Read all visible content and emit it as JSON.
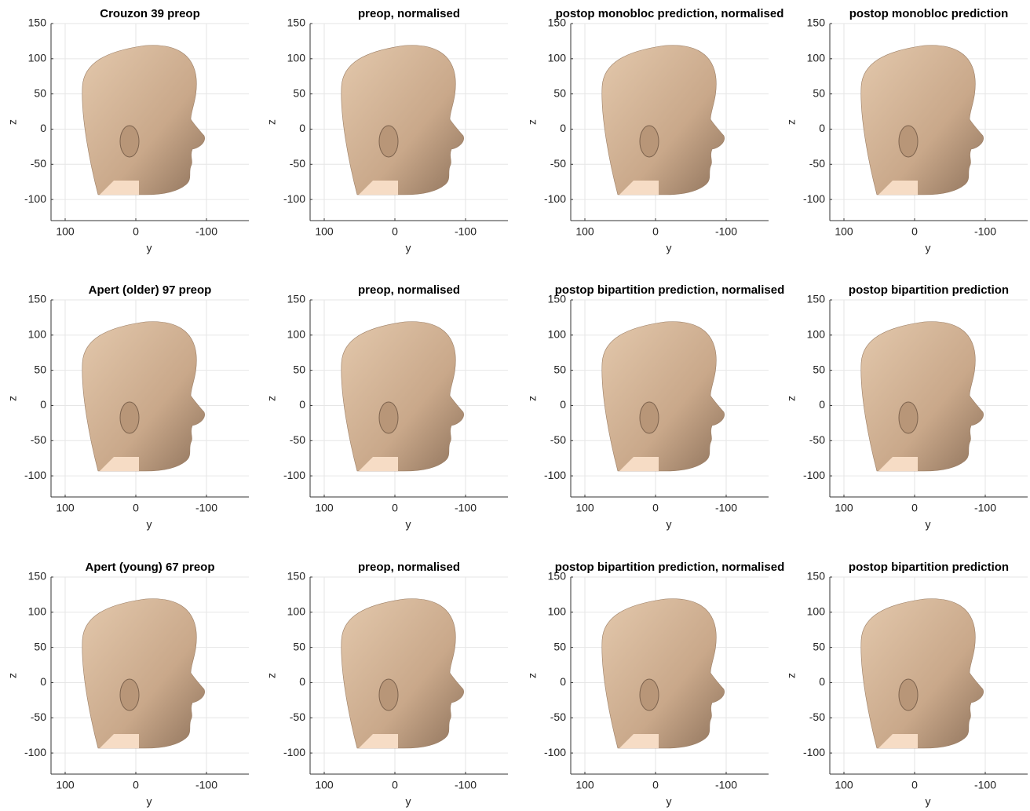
{
  "chart_data": [
    {
      "type": "render",
      "title": "Crouzon 39 preop",
      "xlabel": "y",
      "ylabel": "z",
      "xlim": [
        120,
        -160
      ],
      "ylim": [
        -130,
        150
      ],
      "xticks": [
        100,
        0,
        -100
      ],
      "yticks": [
        -100,
        -50,
        0,
        50,
        100,
        150
      ],
      "grid": true
    },
    {
      "type": "render",
      "title": "preop, normalised",
      "xlabel": "y",
      "ylabel": "z",
      "xlim": [
        120,
        -160
      ],
      "ylim": [
        -130,
        150
      ],
      "xticks": [
        100,
        0,
        -100
      ],
      "yticks": [
        -100,
        -50,
        0,
        50,
        100,
        150
      ],
      "grid": true
    },
    {
      "type": "render",
      "title": "postop monobloc prediction, normalised",
      "xlabel": "y",
      "ylabel": "z",
      "xlim": [
        120,
        -160
      ],
      "ylim": [
        -130,
        150
      ],
      "xticks": [
        100,
        0,
        -100
      ],
      "yticks": [
        -100,
        -50,
        0,
        50,
        100,
        150
      ],
      "grid": true
    },
    {
      "type": "render",
      "title": "postop monobloc prediction",
      "xlabel": "y",
      "ylabel": "z",
      "xlim": [
        120,
        -160
      ],
      "ylim": [
        -130,
        150
      ],
      "xticks": [
        100,
        0,
        -100
      ],
      "yticks": [
        -100,
        -50,
        0,
        50,
        100,
        150
      ],
      "grid": true
    },
    {
      "type": "render",
      "title": "Apert (older) 97 preop",
      "xlabel": "y",
      "ylabel": "z",
      "xlim": [
        120,
        -160
      ],
      "ylim": [
        -130,
        150
      ],
      "xticks": [
        100,
        0,
        -100
      ],
      "yticks": [
        -100,
        -50,
        0,
        50,
        100,
        150
      ],
      "grid": true
    },
    {
      "type": "render",
      "title": "preop, normalised",
      "xlabel": "y",
      "ylabel": "z",
      "xlim": [
        120,
        -160
      ],
      "ylim": [
        -130,
        150
      ],
      "xticks": [
        100,
        0,
        -100
      ],
      "yticks": [
        -100,
        -50,
        0,
        50,
        100,
        150
      ],
      "grid": true
    },
    {
      "type": "render",
      "title": "postop bipartition prediction, normalised",
      "xlabel": "y",
      "ylabel": "z",
      "xlim": [
        120,
        -160
      ],
      "ylim": [
        -130,
        150
      ],
      "xticks": [
        100,
        0,
        -100
      ],
      "yticks": [
        -100,
        -50,
        0,
        50,
        100,
        150
      ],
      "grid": true
    },
    {
      "type": "render",
      "title": "postop bipartition prediction",
      "xlabel": "y",
      "ylabel": "z",
      "xlim": [
        120,
        -160
      ],
      "ylim": [
        -130,
        150
      ],
      "xticks": [
        100,
        0,
        -100
      ],
      "yticks": [
        -100,
        -50,
        0,
        50,
        100,
        150
      ],
      "grid": true
    },
    {
      "type": "render",
      "title": "Apert (young) 67 preop",
      "xlabel": "y",
      "ylabel": "z",
      "xlim": [
        120,
        -160
      ],
      "ylim": [
        -130,
        150
      ],
      "xticks": [
        100,
        0,
        -100
      ],
      "yticks": [
        -100,
        -50,
        0,
        50,
        100,
        150
      ],
      "grid": true
    },
    {
      "type": "render",
      "title": "preop, normalised",
      "xlabel": "y",
      "ylabel": "z",
      "xlim": [
        120,
        -160
      ],
      "ylim": [
        -130,
        150
      ],
      "xticks": [
        100,
        0,
        -100
      ],
      "yticks": [
        -100,
        -50,
        0,
        50,
        100,
        150
      ],
      "grid": true
    },
    {
      "type": "render",
      "title": "postop bipartition prediction, normalised",
      "xlabel": "y",
      "ylabel": "z",
      "xlim": [
        120,
        -160
      ],
      "ylim": [
        -130,
        150
      ],
      "xticks": [
        100,
        0,
        -100
      ],
      "yticks": [
        -100,
        -50,
        0,
        50,
        100,
        150
      ],
      "grid": true
    },
    {
      "type": "render",
      "title": "postop bipartition prediction",
      "xlabel": "y",
      "ylabel": "z",
      "xlim": [
        120,
        -160
      ],
      "ylim": [
        -130,
        150
      ],
      "xticks": [
        100,
        0,
        -100
      ],
      "yticks": [
        -100,
        -50,
        0,
        50,
        100,
        150
      ],
      "grid": true
    }
  ]
}
